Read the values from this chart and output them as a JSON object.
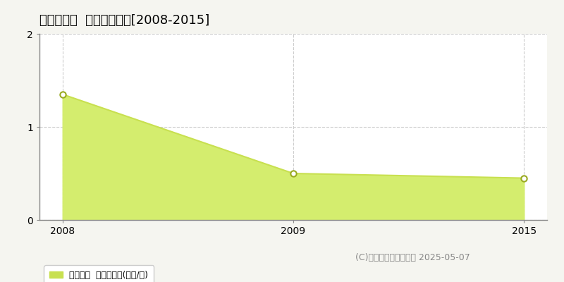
{
  "title": "加東市稲尾  土地価格推移[2008-2015]",
  "years": [
    2008,
    2009,
    2015
  ],
  "values": [
    1.35,
    0.5,
    0.45
  ],
  "x_positions": [
    0,
    1,
    2
  ],
  "line_color": "#c8e050",
  "fill_color": "#d4ed6e",
  "marker_color": "#ffffff",
  "marker_edge_color": "#9aaa22",
  "background_color": "#f5f5f0",
  "plot_bg_color": "#ffffff",
  "xlim": [
    -0.1,
    2.1
  ],
  "ylim": [
    0,
    2
  ],
  "yticks": [
    0,
    1,
    2
  ],
  "grid_color": "#cccccc",
  "grid_style": "--",
  "legend_label": "土地価格  平均坪単価(万円/坪)",
  "legend_color": "#c8e050",
  "copyright_text": "(C)土地価格ドットコム 2025-05-07",
  "title_fontsize": 13,
  "tick_fontsize": 10,
  "legend_fontsize": 9,
  "copyright_fontsize": 9
}
